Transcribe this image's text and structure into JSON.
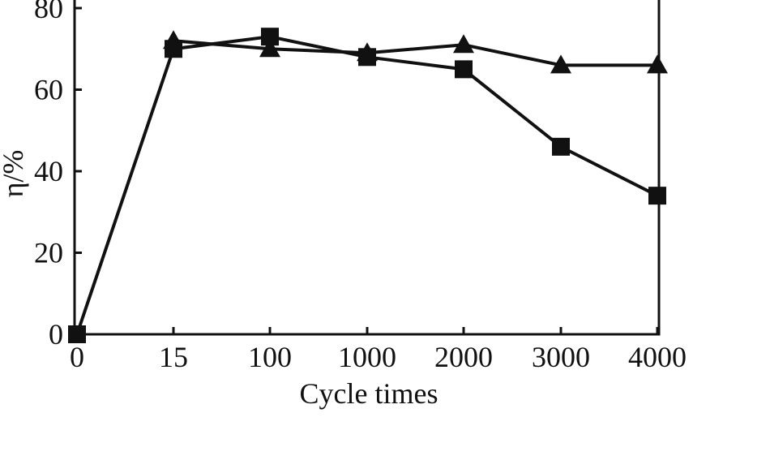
{
  "chart_data": {
    "type": "line",
    "title": "",
    "xlabel": "Cycle times",
    "ylabel": "η/%",
    "categories": [
      "0",
      "15",
      "100",
      "1000",
      "2000",
      "3000",
      "4000"
    ],
    "yticks": [
      "0",
      "20",
      "40",
      "60",
      "80"
    ],
    "ylim": [
      0,
      80
    ],
    "grid": false,
    "legend": "none",
    "series": [
      {
        "marker": "triangle",
        "color": "#111111",
        "values": [
          null,
          72,
          70,
          69,
          71,
          66,
          66
        ]
      },
      {
        "marker": "square",
        "color": "#111111",
        "values": [
          0,
          70,
          73,
          68,
          65,
          46,
          34
        ]
      }
    ]
  }
}
